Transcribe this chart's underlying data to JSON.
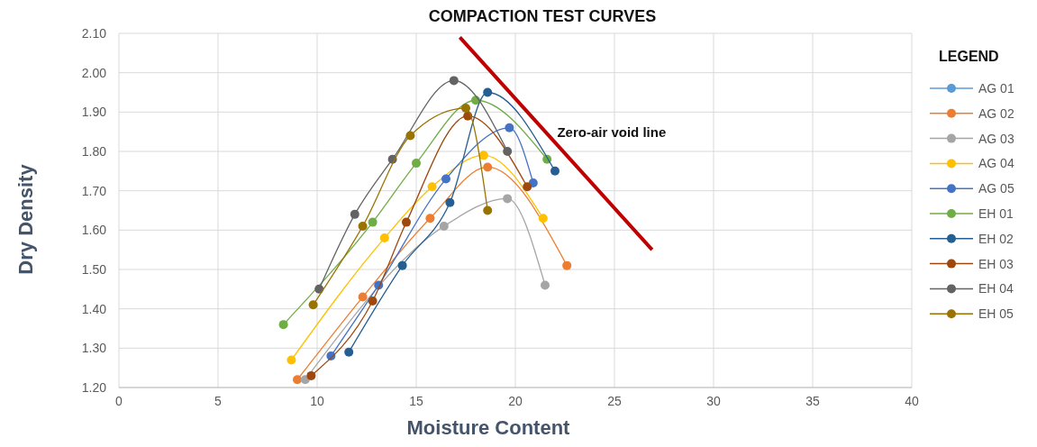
{
  "chart_data": {
    "type": "line",
    "title": "COMPACTION TEST CURVES",
    "xlabel": "Moisture Content",
    "ylabel": "Dry Density",
    "legend_title": "LEGEND",
    "legend": "right",
    "grid": true,
    "marker": "circle",
    "line_style": "solid",
    "xlim": [
      0,
      40
    ],
    "xticks": [
      0,
      5,
      10,
      15,
      20,
      25,
      30,
      35,
      40
    ],
    "ylim": [
      1.2,
      2.1
    ],
    "yticks": [
      {
        "value": 1.2,
        "label": "1.20"
      },
      {
        "value": 1.3,
        "label": "1.30"
      },
      {
        "value": 1.4,
        "label": "1.40"
      },
      {
        "value": 1.5,
        "label": "1.50"
      },
      {
        "value": 1.6,
        "label": "1.60"
      },
      {
        "value": 1.7,
        "label": "1.70"
      },
      {
        "value": 1.8,
        "label": "1.80"
      },
      {
        "value": 1.9,
        "label": "1.90"
      },
      {
        "value": 2.0,
        "label": "2.00"
      },
      {
        "value": 2.1,
        "label": "2.10"
      }
    ],
    "series": [
      {
        "name": "AG 01",
        "color": "#5b9bd5"
      },
      {
        "name": "AG 02",
        "color": "#ed7d31",
        "x": [
          9,
          12.3,
          15.7,
          18.6,
          22.6
        ],
        "values": [
          1.22,
          1.43,
          1.63,
          1.76,
          1.51
        ]
      },
      {
        "name": "AG 03",
        "color": "#a5a5a5",
        "x": [
          9.4,
          16.4,
          19.6,
          21.5
        ],
        "values": [
          1.22,
          1.61,
          1.68,
          1.46
        ]
      },
      {
        "name": "AG 04",
        "color": "#ffc000",
        "x": [
          8.7,
          13.4,
          15.8,
          18.4,
          21.4
        ],
        "values": [
          1.27,
          1.58,
          1.71,
          1.79,
          1.63
        ]
      },
      {
        "name": "AG 05",
        "color": "#4472c4",
        "x": [
          10.7,
          13.1,
          16.5,
          19.7,
          20.9
        ],
        "values": [
          1.28,
          1.46,
          1.73,
          1.86,
          1.72
        ]
      },
      {
        "name": "EH 01",
        "color": "#70ad47",
        "x": [
          8.3,
          12.8,
          15,
          18,
          21.6
        ],
        "values": [
          1.36,
          1.62,
          1.77,
          1.93,
          1.78
        ]
      },
      {
        "name": "EH 02",
        "color": "#255e91",
        "x": [
          11.6,
          14.3,
          16.7,
          18.6,
          22
        ],
        "values": [
          1.29,
          1.51,
          1.67,
          1.95,
          1.75
        ]
      },
      {
        "name": "EH 03",
        "color": "#9e480e",
        "x": [
          9.7,
          12.8,
          14.5,
          17.6,
          20.6
        ],
        "values": [
          1.23,
          1.42,
          1.62,
          1.89,
          1.71
        ]
      },
      {
        "name": "EH 04",
        "color": "#636363",
        "x": [
          10.1,
          11.9,
          13.8,
          16.9,
          19.6
        ],
        "values": [
          1.45,
          1.64,
          1.78,
          1.98,
          1.8
        ]
      },
      {
        "name": "EH 05",
        "color": "#997300",
        "x": [
          9.8,
          12.3,
          14.7,
          17.5,
          18.6
        ],
        "values": [
          1.41,
          1.61,
          1.84,
          1.91,
          1.65
        ]
      },
      {
        "name": "Zero-air void line",
        "type": "line",
        "marker": "none",
        "color": "#c00000",
        "x": [
          17.2,
          26.9
        ],
        "values": [
          2.09,
          1.55
        ]
      }
    ]
  }
}
